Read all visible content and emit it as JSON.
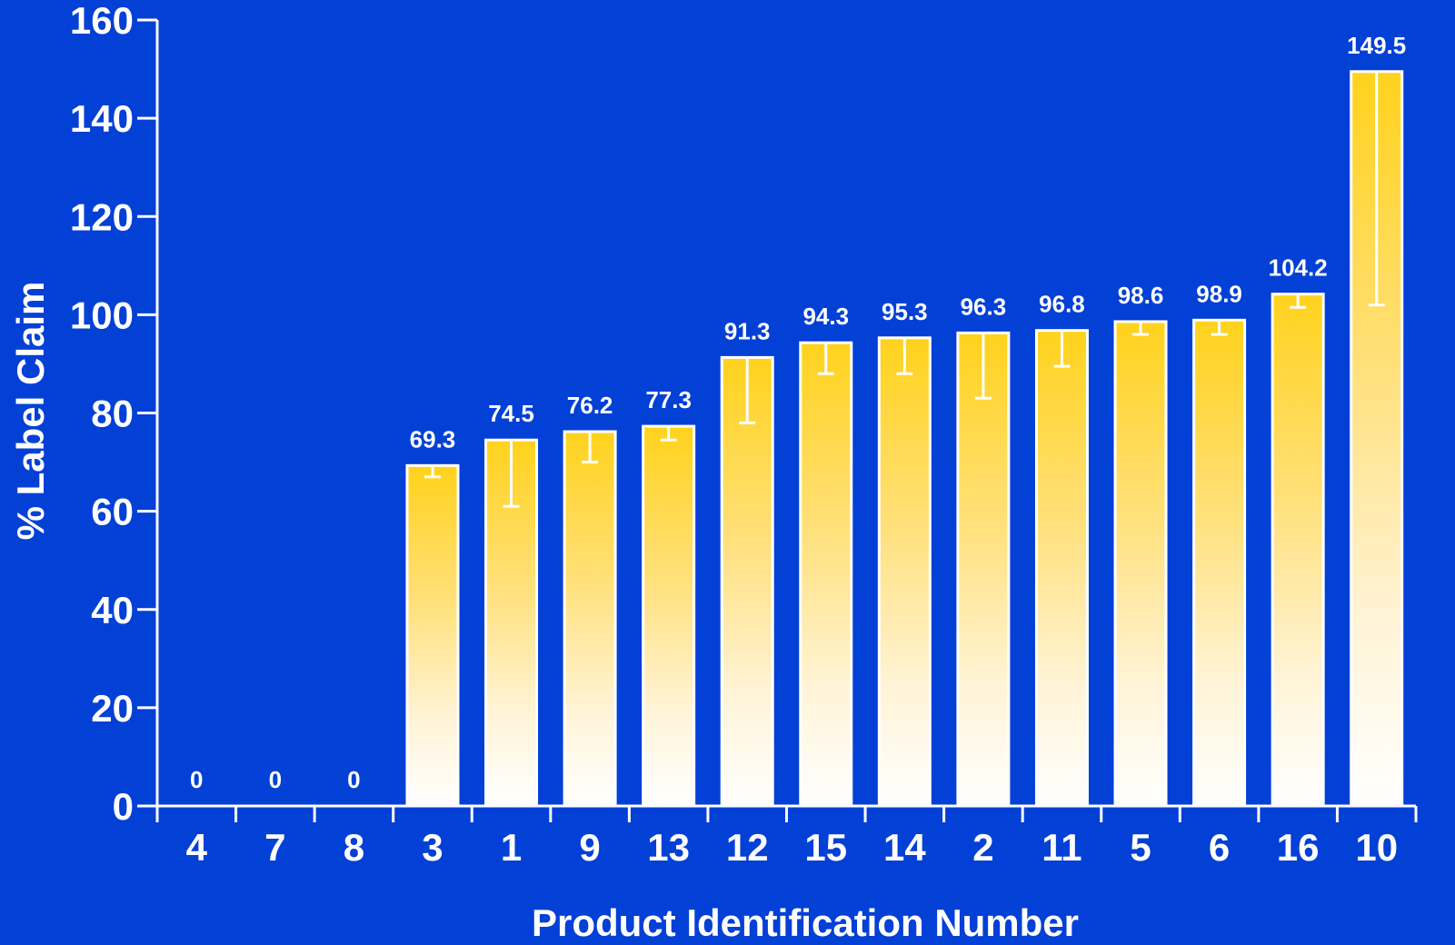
{
  "chart_data": {
    "type": "bar",
    "title": "",
    "xlabel": "Product Identification Number",
    "ylabel": "% Label Claim",
    "ylim": [
      0,
      160
    ],
    "yticks": [
      0,
      20,
      40,
      60,
      80,
      100,
      120,
      140,
      160
    ],
    "categories": [
      "4",
      "7",
      "8",
      "3",
      "1",
      "9",
      "13",
      "12",
      "15",
      "14",
      "2",
      "11",
      "5",
      "6",
      "16",
      "10"
    ],
    "values": [
      0,
      0,
      0,
      69.3,
      74.5,
      76.2,
      77.3,
      91.3,
      94.3,
      95.3,
      96.3,
      96.8,
      98.6,
      98.9,
      104.2,
      149.5
    ],
    "data_labels": [
      "0",
      "0",
      "0",
      "69.3",
      "74.5",
      "76.2",
      "77.3",
      "91.3",
      "94.3",
      "95.3",
      "96.3",
      "96.8",
      "98.6",
      "98.9",
      "104.2",
      "149.5"
    ],
    "error_lower": [
      null,
      null,
      null,
      67,
      61,
      70,
      74.5,
      78,
      88,
      88,
      83,
      89.5,
      96,
      96,
      101.5,
      102
    ],
    "grid": false,
    "legend": "none",
    "colors": {
      "background": "#0340D6",
      "bar_top": "#FFD21C",
      "bar_bottom": "#FFFFFF",
      "axis": "#FFFFFF",
      "text": "#FFFFFF"
    }
  }
}
